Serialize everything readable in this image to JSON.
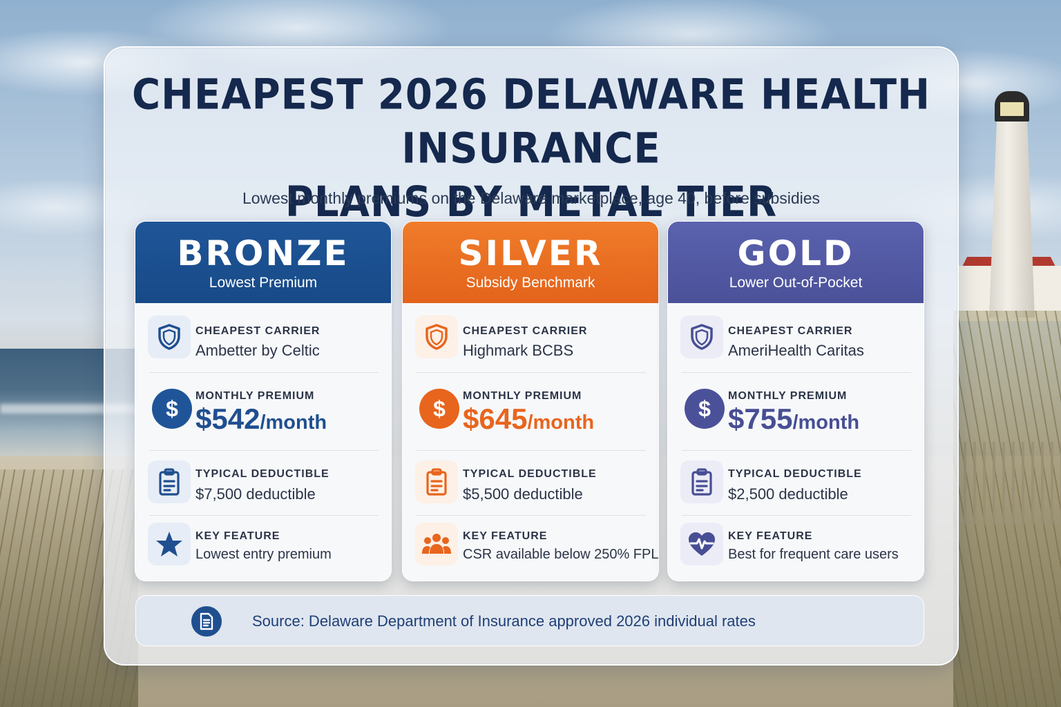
{
  "title_line1": "CHEAPEST 2026 DELAWARE HEALTH INSURANCE",
  "title_line2": "PLANS BY METAL TIER",
  "subtitle": "Lowest monthly premiums on the Delaware marketplace, age 40, before subsidies",
  "labels": {
    "carrier": "CHEAPEST CARRIER",
    "premium": "MONTHLY PREMIUM",
    "deductible": "TYPICAL DEDUCTIBLE",
    "feature": "KEY FEATURE"
  },
  "tiers": [
    {
      "name": "BRONZE",
      "tagline": "Lowest Premium",
      "carrier": "Ambetter by Celtic",
      "premium_amount": "$542",
      "premium_unit": "/month",
      "deductible": "$7,500 deductible",
      "feature": "Lowest entry premium",
      "feature_icon": "star-icon",
      "color": "#1f5598"
    },
    {
      "name": "SILVER",
      "tagline": "Subsidy Benchmark",
      "carrier": "Highmark BCBS",
      "premium_amount": "$645",
      "premium_unit": "/month",
      "deductible": "$5,500 deductible",
      "feature": "CSR available below 250% FPL",
      "feature_icon": "people-icon",
      "color": "#e8651d"
    },
    {
      "name": "GOLD",
      "tagline": "Lower Out-of-Pocket",
      "carrier": "AmeriHealth Caritas",
      "premium_amount": "$755",
      "premium_unit": "/month",
      "deductible": "$2,500 deductible",
      "feature": "Best for frequent care users",
      "feature_icon": "heartbeat-icon",
      "color": "#4b5199"
    }
  ],
  "source": "Source: Delaware Department of Insurance approved 2026 individual rates"
}
